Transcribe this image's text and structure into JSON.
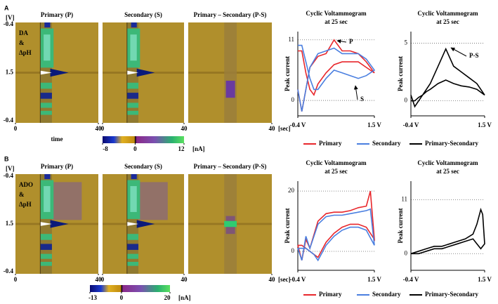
{
  "panels": [
    {
      "label": "A",
      "unit_v": "[V]",
      "analyte": [
        "DA",
        "&",
        "ΔpH"
      ],
      "heatmap_yticks": [
        -0.4,
        1.5,
        -0.4
      ],
      "heatmaps": [
        {
          "title": "Primary (P)",
          "xlim": [
            0,
            40
          ],
          "xticks": [
            0,
            40
          ]
        },
        {
          "title": "Secondary (S)",
          "xlim": [
            0,
            40
          ],
          "xticks": [
            0,
            40
          ]
        },
        {
          "title": "Primary – Secondary (P-S)",
          "xlim": [
            0,
            40
          ],
          "xticks": [
            40
          ]
        }
      ],
      "time_unit": "[sec]",
      "time_label": "time",
      "colorbar": {
        "lim": [
          -8,
          12
        ],
        "ticks": [
          -8,
          0,
          12
        ],
        "unit": "[nA]"
      },
      "charts": [
        {
          "type": "line",
          "title": [
            "Cyclic Voltammogram",
            "at 25 sec"
          ],
          "ylabel": "Peak current",
          "xlim": [
            -0.4,
            1.5
          ],
          "ylim": [
            -2.8,
            12.5
          ],
          "xticks": [
            {
              "value": -0.4,
              "label": "-0.4 V"
            },
            {
              "value": 1.5,
              "label": "1.5 V"
            }
          ],
          "yticks": [
            0,
            11
          ],
          "series": [
            {
              "name": "Primary",
              "color": "#e8262b",
              "x": [
                -0.4,
                -0.3,
                -0.2,
                -0.1,
                0.1,
                0.3,
                0.5,
                0.7,
                0.9,
                1.1,
                1.3,
                1.5,
                1.3,
                1.1,
                0.9,
                0.7,
                0.5,
                0.3,
                0.1,
                0,
                -0.1,
                -0.2,
                -0.3,
                -0.4
              ],
              "values": [
                2,
                -2,
                2,
                6,
                8,
                8.5,
                11,
                9,
                9,
                8.5,
                7,
                5,
                6,
                7,
                7,
                7,
                6.5,
                5,
                3,
                1,
                2,
                5,
                9,
                9
              ]
            },
            {
              "name": "Secondary",
              "color": "#4a7fe0",
              "x": [
                -0.4,
                -0.3,
                -0.2,
                -0.1,
                0.1,
                0.3,
                0.5,
                0.7,
                0.9,
                1.1,
                1.3,
                1.5,
                1.3,
                1.1,
                0.9,
                0.7,
                0.5,
                0.3,
                0.1,
                0,
                -0.1,
                -0.2,
                -0.3,
                -0.4
              ],
              "values": [
                2,
                -2,
                2,
                6,
                8.5,
                9,
                9.5,
                8.5,
                8.5,
                8.5,
                7.5,
                5.5,
                4.5,
                4,
                4.5,
                5,
                5.5,
                4,
                2,
                2,
                4,
                7,
                10,
                10
              ]
            }
          ],
          "annotations": [
            "P",
            "S"
          ]
        },
        {
          "type": "line",
          "title": [
            "Cyclic Voltammogram",
            "at 25 sec"
          ],
          "ylabel": "Peak current",
          "xlim": [
            -0.4,
            1.5
          ],
          "ylim": [
            -1.3,
            6.0
          ],
          "xticks": [
            {
              "value": -0.4,
              "label": "-0.4 V"
            },
            {
              "value": 1.5,
              "label": "1.5 V"
            }
          ],
          "yticks": [
            0,
            5
          ],
          "series": [
            {
              "name": "Primary-Secondary",
              "color": "#000000",
              "x": [
                -0.4,
                -0.3,
                -0.2,
                -0.1,
                0.1,
                0.3,
                0.5,
                0.7,
                0.9,
                1.1,
                1.3,
                1.5,
                1.3,
                1.1,
                0.9,
                0.7,
                0.5,
                0.3,
                0.1,
                0,
                -0.1,
                -0.2,
                -0.3,
                -0.4
              ],
              "values": [
                0.5,
                -0.5,
                0,
                0.5,
                1.5,
                3,
                4.5,
                3,
                2.5,
                2,
                1.5,
                0.5,
                1,
                1.2,
                1.3,
                1.5,
                1.8,
                1.5,
                1,
                0.8,
                0.5,
                0.3,
                0,
                0
              ]
            }
          ],
          "annotations": [
            "P-S"
          ]
        }
      ]
    },
    {
      "label": "B",
      "unit_v": "[V]",
      "analyte": [
        "ADO",
        "&",
        "ΔpH"
      ],
      "heatmap_yticks": [
        -0.4,
        1.5,
        -0.4
      ],
      "heatmaps": [
        {
          "title": "Primary (P)",
          "xlim": [
            0,
            40
          ],
          "xticks": [
            0,
            40
          ]
        },
        {
          "title": "Secondary (S)",
          "xlim": [
            0,
            40
          ],
          "xticks": [
            0,
            40
          ]
        },
        {
          "title": "Primary – Secondary (P-S)",
          "xlim": [
            0,
            40
          ],
          "xticks": [
            40
          ]
        }
      ],
      "time_unit": "[sec]",
      "colorbar": {
        "lim": [
          -13,
          20
        ],
        "ticks": [
          -13,
          0,
          20
        ],
        "unit": "[nA]"
      },
      "charts": [
        {
          "type": "line",
          "title": [
            "Cyclic Voltammogram",
            "at 25 sec"
          ],
          "ylabel": "Peak current",
          "xlim": [
            -0.4,
            1.5
          ],
          "ylim": [
            -6.3,
            23.3
          ],
          "xticks": [
            {
              "value": -0.4,
              "label": "-0.4 V"
            },
            {
              "value": 1.5,
              "label": "1.5 V"
            }
          ],
          "yticks": [
            0,
            20
          ],
          "series": [
            {
              "name": "Primary",
              "color": "#e8262b",
              "x": [
                -0.4,
                -0.3,
                -0.2,
                -0.1,
                0.1,
                0.3,
                0.5,
                0.7,
                0.9,
                1.1,
                1.3,
                1.4,
                1.5,
                1.3,
                1.1,
                0.9,
                0.7,
                0.5,
                0.3,
                0.1,
                0,
                -0.1,
                -0.2,
                -0.3,
                -0.4
              ],
              "values": [
                2,
                -3,
                4,
                1,
                10,
                12.5,
                13,
                13,
                13.5,
                14.5,
                15,
                20,
                4,
                8,
                9,
                9,
                8,
                6,
                3,
                -2,
                -1,
                0,
                1,
                2,
                2
              ]
            },
            {
              "name": "Secondary",
              "color": "#4a7fe0",
              "x": [
                -0.4,
                -0.3,
                -0.2,
                -0.1,
                0.1,
                0.3,
                0.5,
                0.7,
                0.9,
                1.1,
                1.3,
                1.4,
                1.5,
                1.3,
                1.1,
                0.9,
                0.7,
                0.5,
                0.3,
                0.1,
                0,
                -0.1,
                -0.2,
                -0.3,
                -0.4
              ],
              "values": [
                1,
                -3,
                5,
                1,
                9,
                11.5,
                12,
                12,
                12.5,
                13,
                13.5,
                14,
                2,
                7,
                8,
                8,
                7,
                5,
                2,
                -3,
                -1,
                0,
                1,
                1,
                1
              ]
            }
          ]
        },
        {
          "type": "line",
          "title": [
            "Cyclic Voltammogram",
            "at 25 sec"
          ],
          "ylabel": "Peak current",
          "xlim": [
            -0.4,
            1.5
          ],
          "ylim": [
            -3.4,
            14.8
          ],
          "xticks": [
            {
              "value": -0.4,
              "label": "-0.4 V"
            },
            {
              "value": 1.5,
              "label": "1.5 V"
            }
          ],
          "yticks": [
            0,
            11
          ],
          "series": [
            {
              "name": "Primary-Secondary",
              "color": "#000000",
              "x": [
                -0.4,
                -0.2,
                0,
                0.2,
                0.4,
                0.6,
                0.8,
                1.0,
                1.2,
                1.3,
                1.4,
                1.45,
                1.5,
                1.4,
                1.3,
                1.2,
                1.0,
                0.8,
                0.6,
                0.4,
                0.2,
                0,
                -0.2,
                -0.4
              ],
              "values": [
                0,
                0.5,
                1,
                1.5,
                1.5,
                2,
                2.5,
                3,
                4,
                6,
                9,
                8,
                2,
                1,
                2,
                3,
                2.5,
                2,
                1.5,
                1,
                1,
                0.5,
                0,
                0
              ]
            }
          ]
        }
      ]
    }
  ]
}
